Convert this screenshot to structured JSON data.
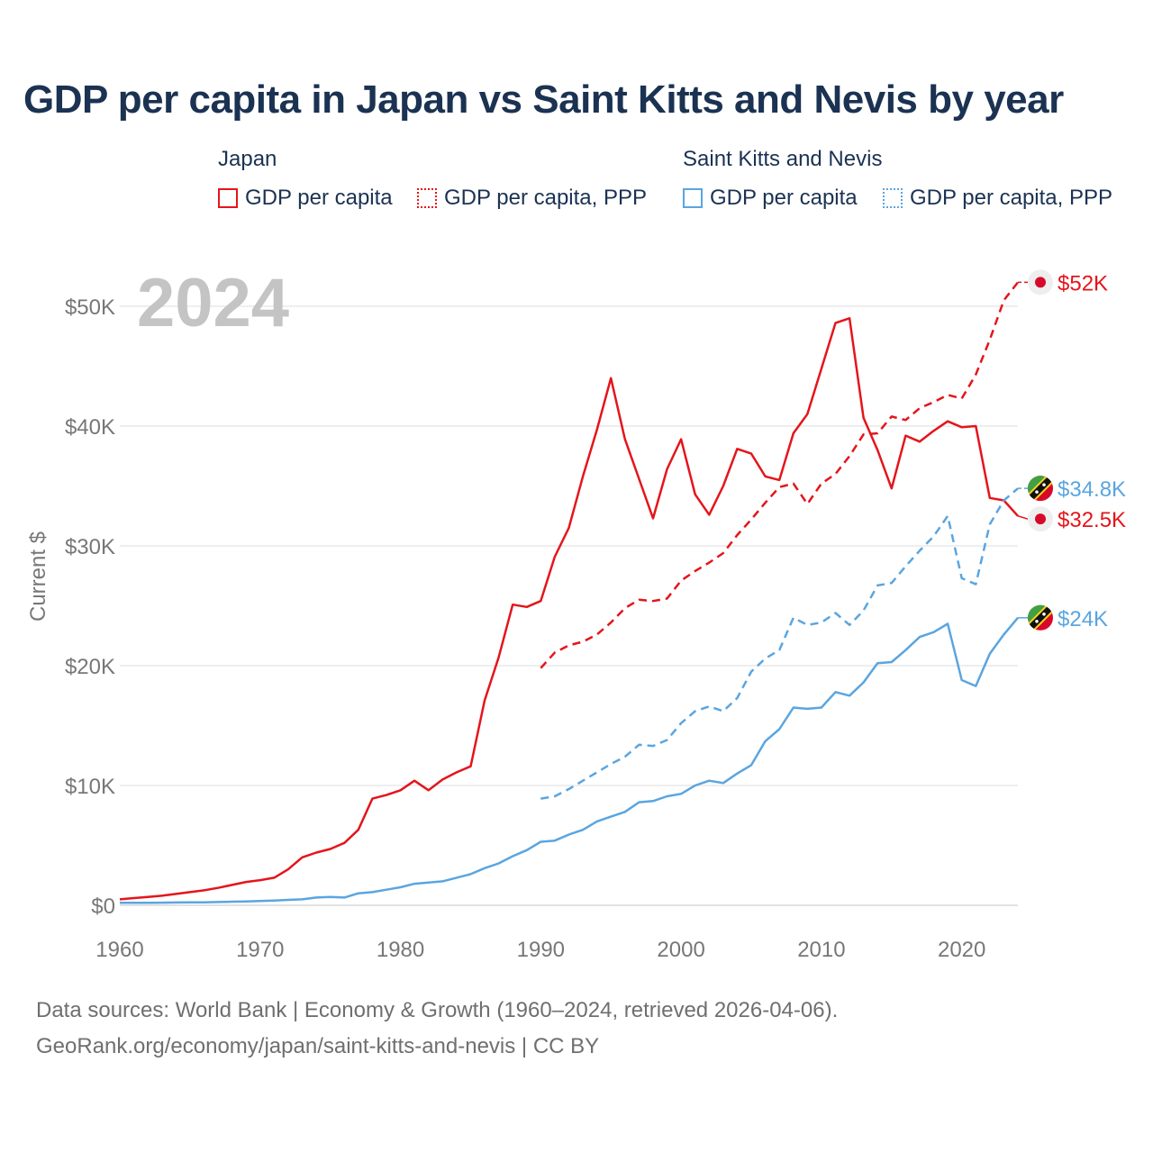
{
  "title": "GDP per capita in Japan vs Saint Kitts and Nevis by year",
  "legend": {
    "groups": [
      {
        "name": "Japan",
        "items": [
          {
            "label": "GDP per capita",
            "style": "solid",
            "color": "#e4151b"
          },
          {
            "label": "GDP per capita, PPP",
            "style": "dashed",
            "color": "#e4151b"
          }
        ]
      },
      {
        "name": "Saint Kitts and Nevis",
        "items": [
          {
            "label": "GDP per capita",
            "style": "solid",
            "color": "#5aa5e0"
          },
          {
            "label": "GDP per capita, PPP",
            "style": "dashed",
            "color": "#5aa5e0"
          }
        ]
      }
    ]
  },
  "source": {
    "line1": "Data sources: World Bank | Economy & Growth (1960–2024, retrieved 2026-04-06).",
    "line2": "GeoRank.org/economy/japan/saint-kitts-and-nevis | CC BY"
  },
  "chart_data": {
    "type": "line",
    "title": "GDP per capita in Japan vs Saint Kitts and Nevis by year",
    "year_watermark": "2024",
    "ylabel": "Current $",
    "xlabel": "",
    "xlim": [
      1960,
      2024
    ],
    "ylim": [
      0,
      50000
    ],
    "y_ticks": [
      0,
      10000,
      20000,
      30000,
      40000,
      50000
    ],
    "y_tick_labels": [
      "$0",
      "$10K",
      "$20K",
      "$30K",
      "$40K",
      "$50K"
    ],
    "x_ticks": [
      1960,
      1970,
      1980,
      1990,
      2000,
      2010,
      2020
    ],
    "x_tick_labels": [
      "1960",
      "1970",
      "1980",
      "1990",
      "2000",
      "2010",
      "2020"
    ],
    "grid": true,
    "series": [
      {
        "name": "Japan GDP per capita",
        "style": "solid",
        "color": "#e4151b",
        "end_label": "$32.5K",
        "end_icon": "japan-flag",
        "start_year": 1960,
        "values": [
          500,
          600,
          700,
          800,
          950,
          1100,
          1250,
          1450,
          1700,
          1950,
          2100,
          2300,
          3000,
          4000,
          4400,
          4700,
          5200,
          6300,
          8900,
          9200,
          9600,
          10400,
          9600,
          10500,
          11100,
          11600,
          17100,
          20700,
          25100,
          24900,
          25400,
          29100,
          31500,
          35800,
          39700,
          44000,
          38900,
          35600,
          32300,
          36400,
          38900,
          34300,
          32600,
          35000,
          38100,
          37700,
          35800,
          35500,
          39400,
          41000,
          44800,
          48600,
          49000,
          40700,
          38000,
          34800,
          39200,
          38700,
          39600,
          40400,
          39900,
          40000,
          34000,
          33800,
          32500
        ]
      },
      {
        "name": "Japan GDP per capita, PPP",
        "style": "dashed",
        "color": "#e4151b",
        "end_label": "$52K",
        "end_icon": "japan-flag",
        "start_year": 1990,
        "values": [
          19800,
          21100,
          21700,
          22000,
          22600,
          23600,
          24800,
          25500,
          25400,
          25600,
          27100,
          27900,
          28600,
          29400,
          30900,
          32200,
          33600,
          34900,
          35200,
          33500,
          35200,
          36000,
          37500,
          39300,
          39400,
          40800,
          40500,
          41500,
          42000,
          42600,
          42300,
          44300,
          47200,
          50500,
          52000
        ]
      },
      {
        "name": "Saint Kitts and Nevis GDP per capita",
        "style": "solid",
        "color": "#5aa5e0",
        "end_label": "$24K",
        "end_icon": "saint-kitts-flag",
        "start_year": 1960,
        "values": [
          200,
          200,
          210,
          220,
          230,
          240,
          250,
          270,
          300,
          320,
          350,
          400,
          450,
          500,
          650,
          700,
          650,
          1000,
          1100,
          1300,
          1500,
          1800,
          1900,
          2000,
          2300,
          2600,
          3100,
          3500,
          4100,
          4600,
          5300,
          5400,
          5900,
          6300,
          7000,
          7400,
          7800,
          8600,
          8700,
          9100,
          9300,
          10000,
          10400,
          10200,
          11000,
          11700,
          13700,
          14700,
          16500,
          16400,
          16500,
          17800,
          17500,
          18600,
          20200,
          20300,
          21300,
          22400,
          22800,
          23500,
          18800,
          18300,
          21000,
          22600,
          24000
        ]
      },
      {
        "name": "Saint Kitts and Nevis GDP per capita, PPP",
        "style": "dashed",
        "color": "#5aa5e0",
        "end_label": "$34.8K",
        "end_icon": "saint-kitts-flag",
        "start_year": 1990,
        "values": [
          8900,
          9100,
          9700,
          10400,
          11100,
          11800,
          12400,
          13400,
          13300,
          13800,
          15200,
          16200,
          16600,
          16200,
          17300,
          19500,
          20600,
          21300,
          24000,
          23400,
          23600,
          24400,
          23400,
          24600,
          26700,
          26900,
          28300,
          29600,
          30800,
          32500,
          27300,
          26800,
          31800,
          33800,
          34800
        ]
      }
    ]
  }
}
